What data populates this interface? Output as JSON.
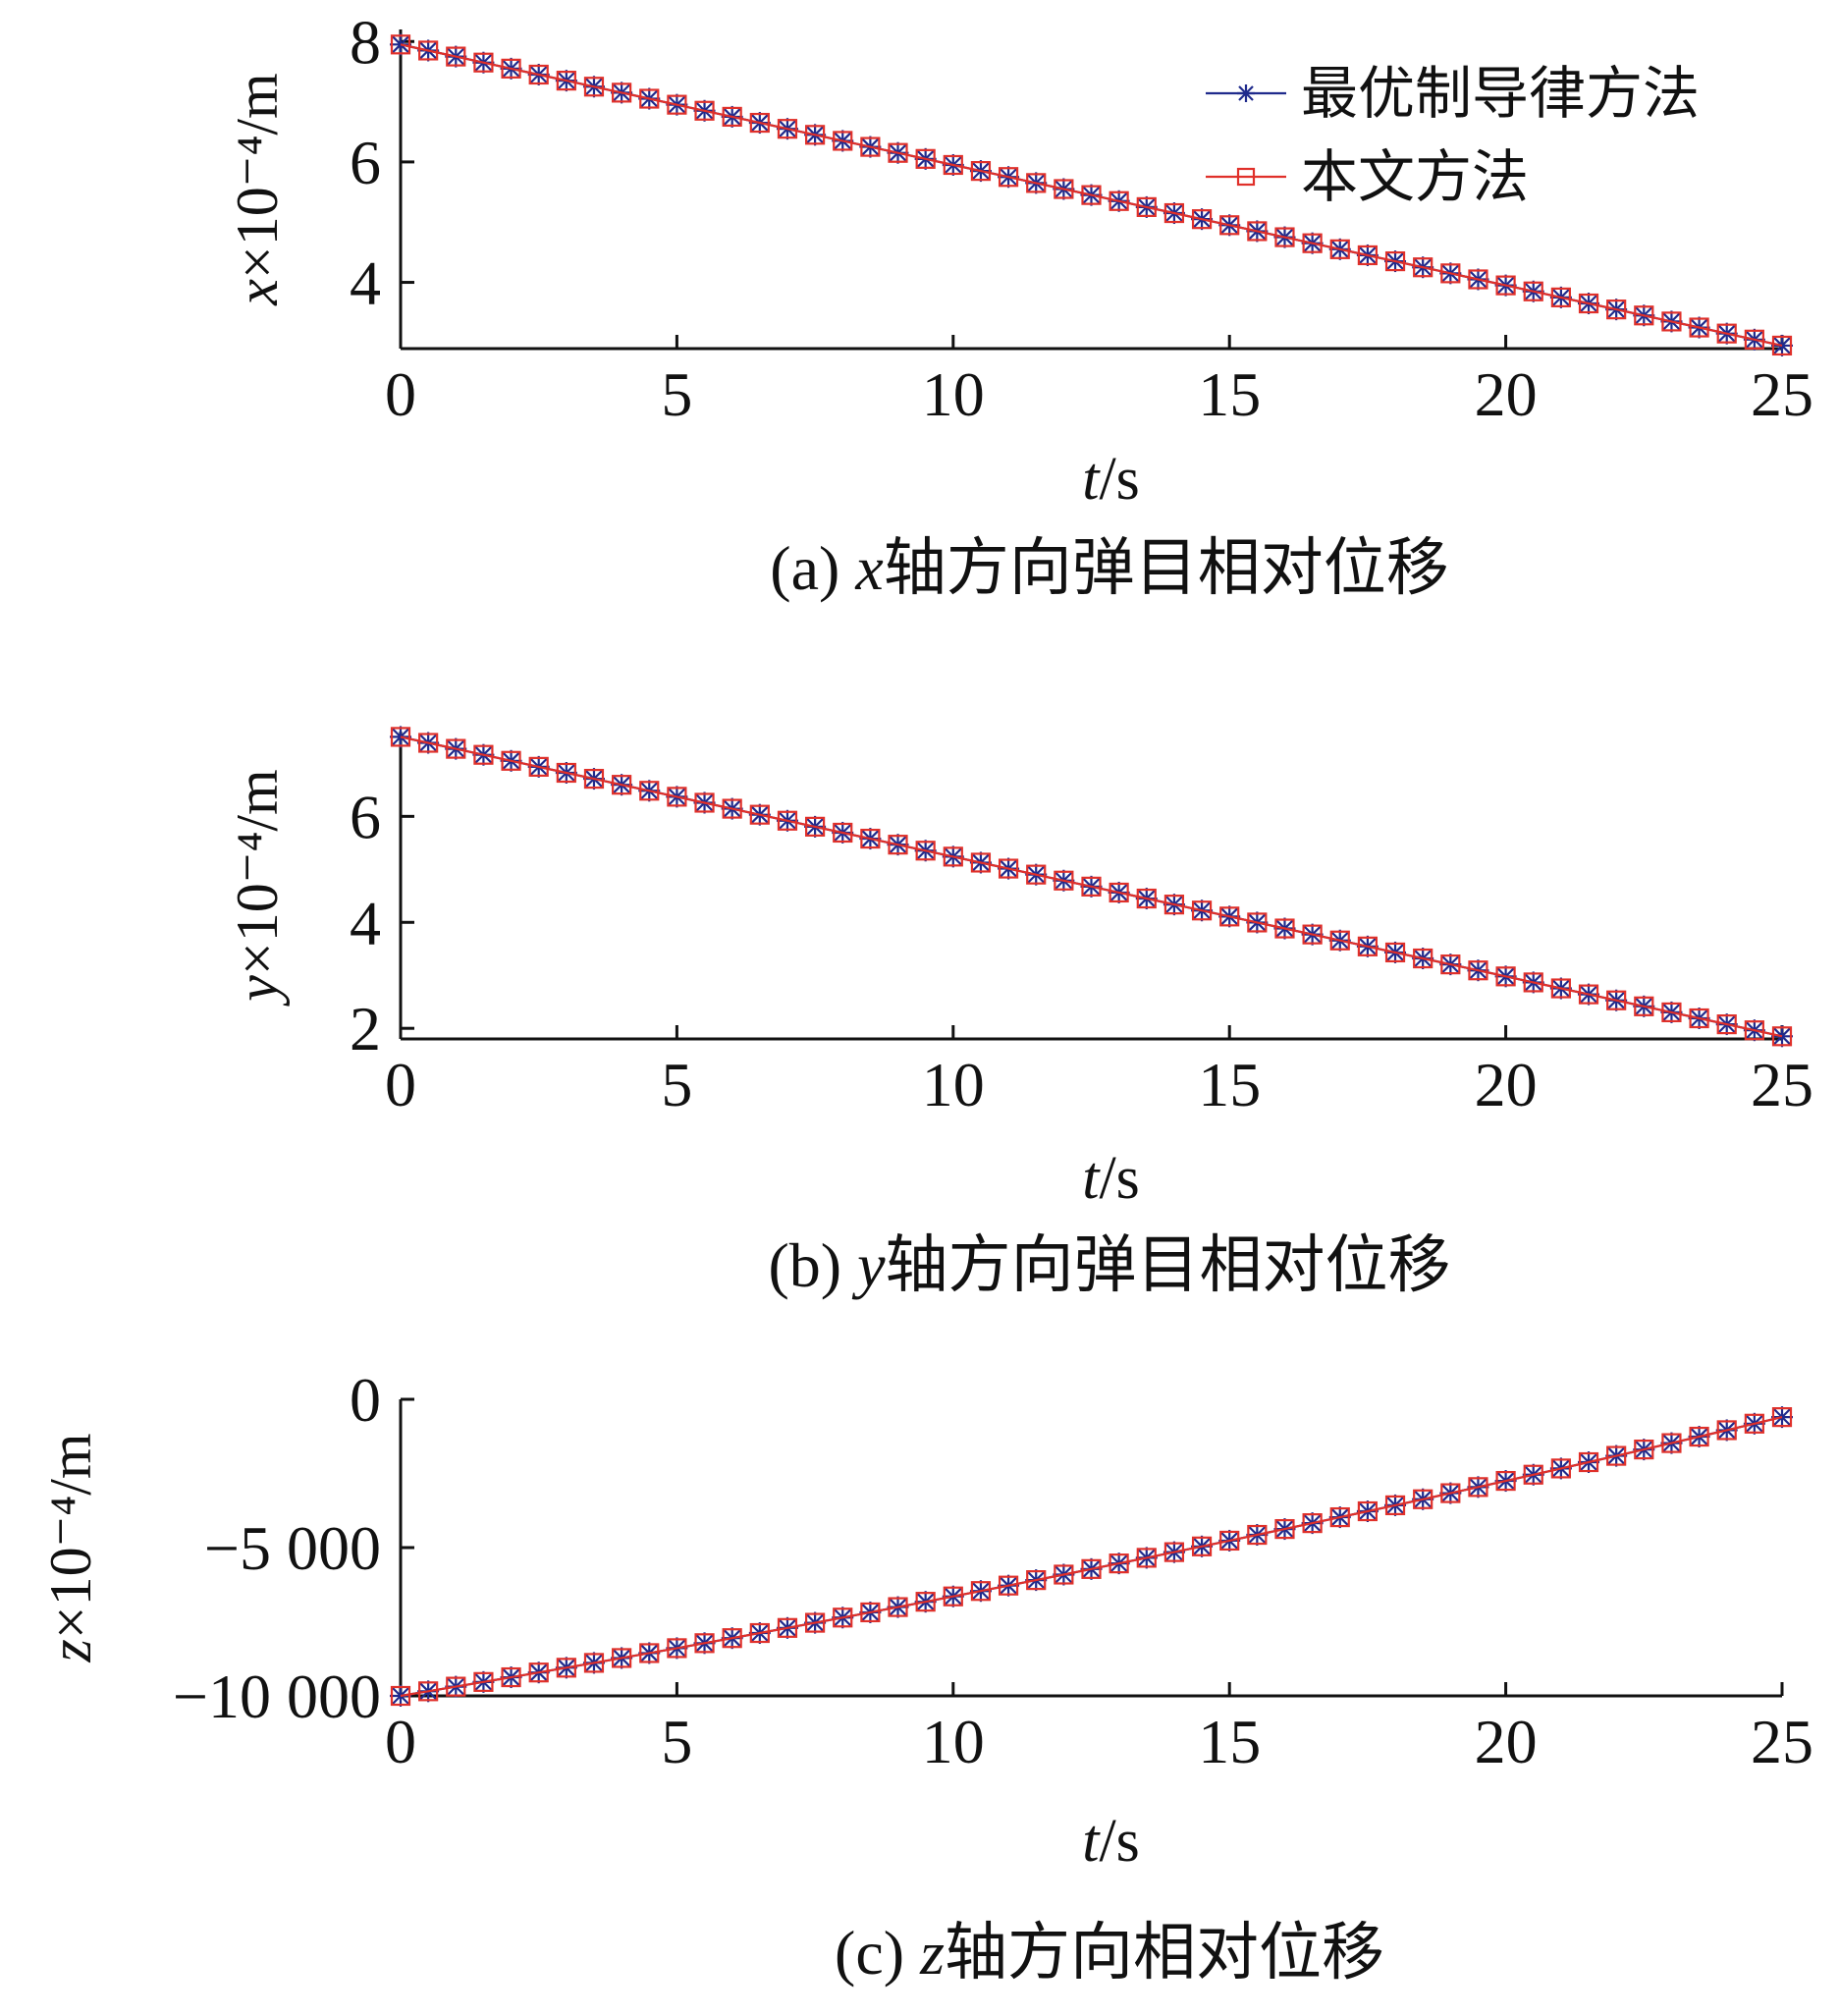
{
  "chart_data": [
    {
      "type": "line",
      "ylabel_var": "x",
      "ylabel_rest": "×10⁻⁴/m",
      "xlabel_var": "t",
      "xlabel_rest": "/s",
      "caption_prefix": "(a) ",
      "caption_var": "x",
      "caption_rest": "轴方向弹目相对位移",
      "xlim": [
        0,
        25
      ],
      "ylim": [
        2.9,
        8.2
      ],
      "xticks": [
        0,
        5,
        10,
        15,
        20,
        25
      ],
      "yticks": [
        4,
        6,
        8
      ],
      "xtick_labels": [
        "0",
        "5",
        "10",
        "15",
        "20",
        "25"
      ],
      "ytick_labels": [
        "4",
        "6",
        "8"
      ],
      "legend": {
        "position": "top-right",
        "entries": [
          "最优制导律方法",
          "本文方法"
        ]
      },
      "series": [
        {
          "name": "最优制导律方法",
          "marker": "asterisk",
          "color": "#1f2a8c",
          "x": [
            0,
            25
          ],
          "y": [
            7.95,
            2.95
          ],
          "sample_step": 0.5
        },
        {
          "name": "本文方法",
          "marker": "square",
          "color": "#e0302a",
          "x": [
            0,
            25
          ],
          "y": [
            7.95,
            2.95
          ],
          "sample_step": 0.5
        }
      ]
    },
    {
      "type": "line",
      "ylabel_var": "y",
      "ylabel_rest": "×10⁻⁴/m",
      "xlabel_var": "t",
      "xlabel_rest": "/s",
      "caption_prefix": "(b) ",
      "caption_var": "y",
      "caption_rest": "轴方向弹目相对位移",
      "xlim": [
        0,
        25
      ],
      "ylim": [
        1.8,
        7.6
      ],
      "xticks": [
        0,
        5,
        10,
        15,
        20,
        25
      ],
      "yticks": [
        2,
        4,
        6
      ],
      "xtick_labels": [
        "0",
        "5",
        "10",
        "15",
        "20",
        "25"
      ],
      "ytick_labels": [
        "2",
        "4",
        "6"
      ],
      "series": [
        {
          "name": "最优制导律方法",
          "marker": "asterisk",
          "color": "#1f2a8c",
          "x": [
            0,
            25
          ],
          "y": [
            7.5,
            1.85
          ],
          "sample_step": 0.5
        },
        {
          "name": "本文方法",
          "marker": "square",
          "color": "#e0302a",
          "x": [
            0,
            25
          ],
          "y": [
            7.5,
            1.85
          ],
          "sample_step": 0.5
        }
      ]
    },
    {
      "type": "line",
      "ylabel_var": "z",
      "ylabel_rest": "×10⁻⁴/m",
      "xlabel_var": "t",
      "xlabel_rest": "/s",
      "caption_prefix": "(c) ",
      "caption_var": "z",
      "caption_rest": "轴方向相对位移",
      "xlim": [
        0,
        25
      ],
      "ylim": [
        -10000,
        0
      ],
      "xticks": [
        0,
        5,
        10,
        15,
        20,
        25
      ],
      "yticks": [
        0,
        -5000,
        -10000
      ],
      "xtick_labels": [
        "0",
        "5",
        "10",
        "15",
        "20",
        "25"
      ],
      "ytick_labels": [
        "0",
        "−5 000",
        "−10 000"
      ],
      "series": [
        {
          "name": "最优制导律方法",
          "marker": "asterisk",
          "color": "#1f2a8c",
          "x": [
            0,
            25
          ],
          "y": [
            -10000,
            -600
          ],
          "curve": "slightly-convex",
          "sample_step": 0.5
        },
        {
          "name": "本文方法",
          "marker": "square",
          "color": "#e0302a",
          "x": [
            0,
            25
          ],
          "y": [
            -10000,
            -600
          ],
          "curve": "slightly-convex",
          "sample_step": 0.5
        }
      ]
    }
  ]
}
